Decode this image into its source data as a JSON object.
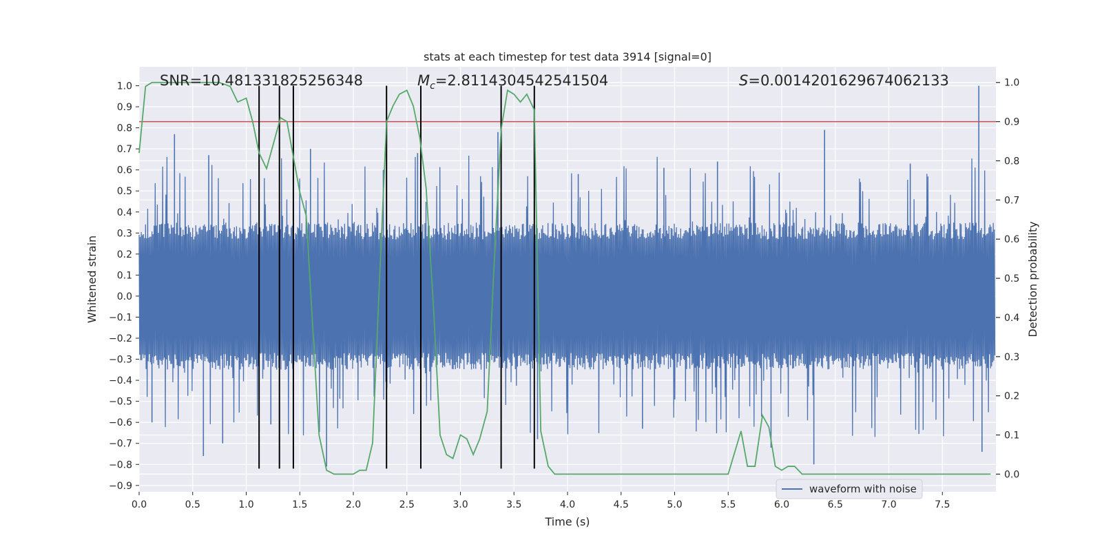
{
  "chart_data": {
    "type": "line",
    "title": "stats at each timestep for test data 3914 [signal=0]",
    "xlabel": "Time (s)",
    "ylabel": "Whitened strain",
    "ylabel_right": "Detection probability",
    "xlim": [
      0.0,
      8.0
    ],
    "ylim": [
      -0.93,
      1.09
    ],
    "ylim_right": [
      -0.045,
      1.04
    ],
    "x_ticks": [
      "0.0",
      "0.5",
      "1.0",
      "1.5",
      "2.0",
      "2.5",
      "3.0",
      "3.5",
      "4.0",
      "4.5",
      "5.0",
      "5.5",
      "6.0",
      "6.5",
      "7.0",
      "7.5"
    ],
    "x_tick_values": [
      0.0,
      0.5,
      1.0,
      1.5,
      2.0,
      2.5,
      3.0,
      3.5,
      4.0,
      4.5,
      5.0,
      5.5,
      6.0,
      6.5,
      7.0,
      7.5
    ],
    "y_ticks": [
      "1.0",
      "0.9",
      "0.8",
      "0.7",
      "0.6",
      "0.5",
      "0.4",
      "0.3",
      "0.2",
      "0.1",
      "0.0",
      "−0.1",
      "−0.2",
      "−0.3",
      "−0.4",
      "−0.5",
      "−0.6",
      "−0.7",
      "−0.8",
      "−0.9"
    ],
    "y_tick_values": [
      1.0,
      0.9,
      0.8,
      0.7,
      0.6,
      0.5,
      0.4,
      0.3,
      0.2,
      0.1,
      0.0,
      -0.1,
      -0.2,
      -0.3,
      -0.4,
      -0.5,
      -0.6,
      -0.7,
      -0.8,
      -0.9
    ],
    "y_right_ticks": [
      "1.0",
      "0.9",
      "0.8",
      "0.7",
      "0.6",
      "0.5",
      "0.4",
      "0.3",
      "0.2",
      "0.1",
      "0.0"
    ],
    "y_right_tick_values": [
      1.0,
      0.9,
      0.8,
      0.7,
      0.6,
      0.5,
      0.4,
      0.3,
      0.2,
      0.1,
      0.0
    ],
    "annotations": {
      "snr": "SNR=10.481331825256348",
      "mc_symbol": "M",
      "mc_sub": "c",
      "mc_value": "=2.8114304542541504",
      "s_symbol": "S",
      "s_value": "=0.0014201629674062133"
    },
    "threshold": 0.9,
    "vertical_lines": [
      1.12,
      1.31,
      1.44,
      2.31,
      2.63,
      3.38,
      3.69
    ],
    "vertical_line_range": [
      -0.82,
      1.0
    ],
    "series": [
      {
        "name": "waveform with noise",
        "color": "#4c72b0",
        "axis": "left",
        "description": "whitened strain noise, approx. uniform band -0.27..0.27 with spikes to about +/-0.77",
        "spikes": [
          [
            0.33,
            0.77
          ],
          [
            0.12,
            -0.6
          ],
          [
            0.6,
            -0.76
          ],
          [
            0.65,
            0.67
          ],
          [
            0.78,
            -0.7
          ],
          [
            1.23,
            -0.61
          ],
          [
            1.6,
            0.7
          ],
          [
            1.75,
            -0.81
          ],
          [
            2.28,
            0.6
          ],
          [
            2.6,
            0.68
          ],
          [
            3.35,
            0.78
          ],
          [
            3.72,
            -0.68
          ],
          [
            4.1,
            0.58
          ],
          [
            4.9,
            0.61
          ],
          [
            5.4,
            0.64
          ],
          [
            6.4,
            0.79
          ],
          [
            7.2,
            0.63
          ],
          [
            7.84,
            1.0
          ],
          [
            7.87,
            -0.74
          ],
          [
            6.3,
            -0.8
          ],
          [
            5.9,
            -0.72
          ],
          [
            4.7,
            -0.63
          ]
        ]
      },
      {
        "name": "detection probability",
        "color": "#55a868",
        "axis": "right",
        "x": [
          0.0,
          0.06,
          0.12,
          0.25,
          0.4,
          0.6,
          0.75,
          0.85,
          0.92,
          1.0,
          1.06,
          1.12,
          1.19,
          1.25,
          1.32,
          1.38,
          1.44,
          1.5,
          1.56,
          1.62,
          1.68,
          1.75,
          1.82,
          1.88,
          1.95,
          2.0,
          2.06,
          2.12,
          2.18,
          2.25,
          2.31,
          2.37,
          2.43,
          2.5,
          2.56,
          2.62,
          2.68,
          2.75,
          2.81,
          2.87,
          2.93,
          3.0,
          3.06,
          3.12,
          3.18,
          3.25,
          3.31,
          3.38,
          3.44,
          3.5,
          3.56,
          3.62,
          3.69,
          3.75,
          3.82,
          3.88,
          3.94,
          4.0,
          4.2,
          4.5,
          4.8,
          5.0,
          5.1,
          5.3,
          5.5,
          5.62,
          5.68,
          5.75,
          5.82,
          5.88,
          5.94,
          6.0,
          6.06,
          6.12,
          6.19,
          6.25,
          6.5,
          7.0,
          7.5,
          7.95
        ],
        "y": [
          0.82,
          0.99,
          1.0,
          1.0,
          1.0,
          1.0,
          1.0,
          0.99,
          0.95,
          0.96,
          0.9,
          0.82,
          0.78,
          0.84,
          0.91,
          0.9,
          0.81,
          0.72,
          0.66,
          0.38,
          0.1,
          0.01,
          0.0,
          0.0,
          0.0,
          0.0,
          0.01,
          0.01,
          0.08,
          0.53,
          0.9,
          0.94,
          0.97,
          0.98,
          0.94,
          0.86,
          0.73,
          0.42,
          0.1,
          0.05,
          0.04,
          0.1,
          0.09,
          0.05,
          0.09,
          0.16,
          0.51,
          0.88,
          0.98,
          0.97,
          0.95,
          0.97,
          0.93,
          0.11,
          0.02,
          0.0,
          0.0,
          0.0,
          0.0,
          0.0,
          0.0,
          0.0,
          0.0,
          0.0,
          0.0,
          0.11,
          0.02,
          0.02,
          0.15,
          0.12,
          0.02,
          0.01,
          0.02,
          0.02,
          0.0,
          0.0,
          0.0,
          0.0,
          0.0,
          0.0
        ]
      },
      {
        "name": "threshold",
        "color": "#c44e52",
        "axis": "right",
        "value": 0.9
      }
    ],
    "legend": {
      "placement": "lower-right",
      "entries": [
        "waveform with noise"
      ]
    }
  }
}
